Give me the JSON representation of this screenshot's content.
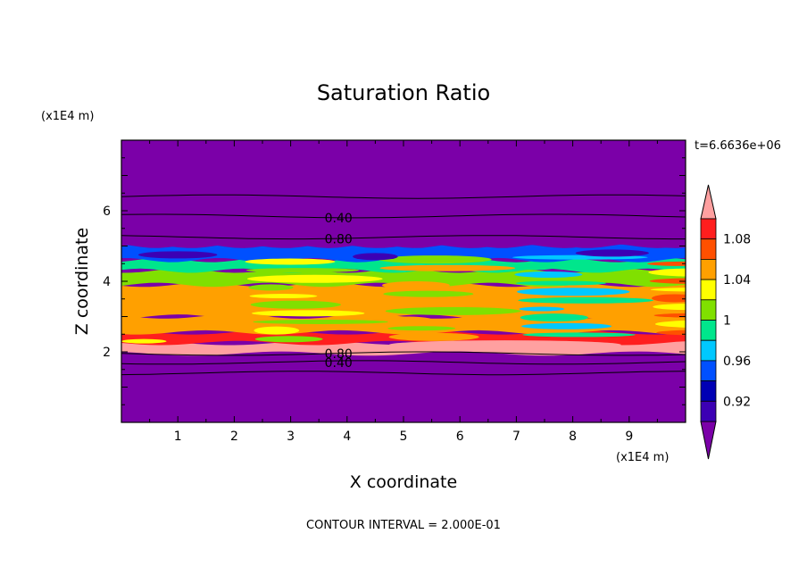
{
  "chart_data": {
    "type": "heatmap",
    "title": "Saturation Ratio",
    "xlabel": "X coordinate",
    "ylabel": "Z coordinate",
    "x_scale_note": "(x1E4 m)",
    "y_scale_note": "(x1E4 m)",
    "xlim": [
      0,
      10
    ],
    "ylim": [
      0,
      8
    ],
    "x_ticks": [
      1,
      2,
      3,
      4,
      5,
      6,
      7,
      8,
      9
    ],
    "y_ticks": [
      2,
      4,
      6
    ],
    "time_label": "t=6.6636e+06",
    "footer": "CONTOUR INTERVAL = 2.000E-01",
    "contour_labels": [
      {
        "text": "0.40",
        "x": 3.5,
        "z": 5.8
      },
      {
        "text": "0.80",
        "x": 3.5,
        "z": 5.2
      },
      {
        "text": "0.80",
        "x": 3.5,
        "z": 1.95
      },
      {
        "text": "0.40",
        "x": 3.5,
        "z": 1.7
      }
    ],
    "contour_lines_z": [
      6.4,
      5.85,
      5.25,
      1.95,
      1.7,
      1.4
    ],
    "colorbar": {
      "labels": [
        "0.92",
        "0.96",
        "1",
        "1.04",
        "1.08"
      ],
      "levels": [
        0.9,
        0.92,
        0.94,
        0.96,
        0.98,
        1.0,
        1.02,
        1.04,
        1.06,
        1.08,
        1.1
      ],
      "colors": [
        "#7b00a8",
        "#3c00b4",
        "#0000b4",
        "#0050ff",
        "#00c8ff",
        "#00e68c",
        "#80e000",
        "#ffff00",
        "#ffa000",
        "#ff5000",
        "#ff1e1e",
        "#ffa0a0"
      ],
      "over_color": "#ffa0a0",
      "under_color": "#7b00a8"
    },
    "bands": [
      {
        "z0": 0.0,
        "z1": 1.95,
        "value": "<0.90"
      },
      {
        "z0": 1.95,
        "z1": 2.25,
        "value": ">1.10"
      },
      {
        "z0": 2.25,
        "z1": 2.55,
        "value": "1.08"
      },
      {
        "z0": 2.55,
        "z1": 3.0,
        "value": "1.04"
      },
      {
        "z0": 3.0,
        "z1": 3.9,
        "value": "1.04"
      },
      {
        "z0": 3.9,
        "z1": 4.3,
        "value": "1.00"
      },
      {
        "z0": 4.3,
        "z1": 4.6,
        "value": "0.98"
      },
      {
        "z0": 4.6,
        "z1": 5.0,
        "value": "0.94"
      },
      {
        "z0": 5.0,
        "z1": 8.0,
        "value": "<0.90"
      }
    ]
  }
}
